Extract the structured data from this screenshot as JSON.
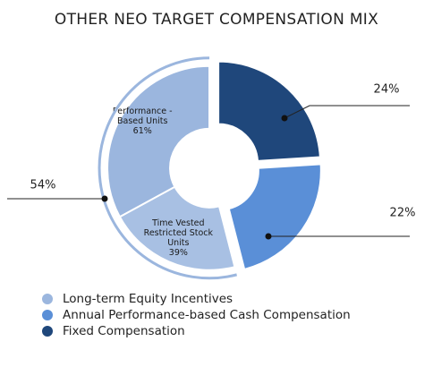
{
  "chart_data": {
    "type": "donut",
    "title": "OTHER NEO TARGET COMPENSATION MIX",
    "categories": [
      "Long-term Equity Incentives",
      "Annual Performance-based Cash Compensation",
      "Fixed Compensation"
    ],
    "values": [
      54,
      22,
      24
    ],
    "value_labels": [
      "54%",
      "22%",
      "24%"
    ],
    "colors": [
      "#9bb6de",
      "#5a8fd7",
      "#1f477b"
    ],
    "legend": "bottom-left",
    "breakdown": {
      "of": "Long-term Equity Incentives",
      "categories": [
        "Performance - Based Units",
        "Time Vested Restricted Stock Units"
      ],
      "values": [
        61,
        39
      ],
      "value_labels": [
        "61%",
        "39%"
      ],
      "colors": [
        "#9bb6de",
        "#a8c0e3"
      ]
    }
  }
}
